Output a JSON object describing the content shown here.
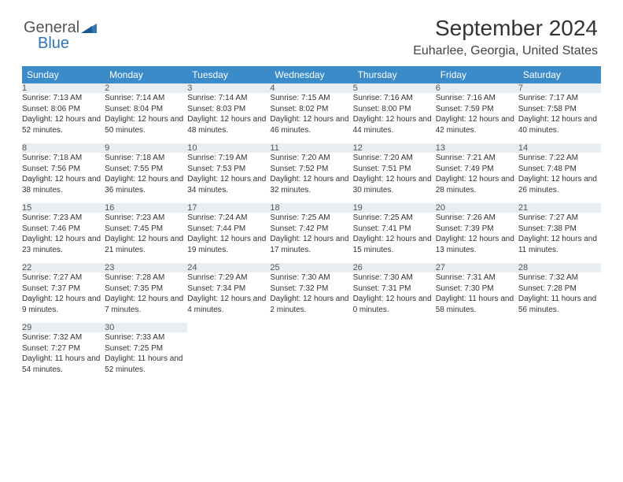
{
  "logo": {
    "part1": "General",
    "part2": "Blue"
  },
  "header": {
    "title": "September 2024",
    "location": "Euharlee, Georgia, United States"
  },
  "colors": {
    "header_bg": "#3b8bc9",
    "daynum_bg": "#e8edf2",
    "daynum_border": "#4a6ea0",
    "logo_blue": "#2f77b6"
  },
  "weekdays": [
    "Sunday",
    "Monday",
    "Tuesday",
    "Wednesday",
    "Thursday",
    "Friday",
    "Saturday"
  ],
  "weeks": [
    [
      {
        "num": "1",
        "sunrise": "Sunrise: 7:13 AM",
        "sunset": "Sunset: 8:06 PM",
        "daylight": "Daylight: 12 hours and 52 minutes."
      },
      {
        "num": "2",
        "sunrise": "Sunrise: 7:14 AM",
        "sunset": "Sunset: 8:04 PM",
        "daylight": "Daylight: 12 hours and 50 minutes."
      },
      {
        "num": "3",
        "sunrise": "Sunrise: 7:14 AM",
        "sunset": "Sunset: 8:03 PM",
        "daylight": "Daylight: 12 hours and 48 minutes."
      },
      {
        "num": "4",
        "sunrise": "Sunrise: 7:15 AM",
        "sunset": "Sunset: 8:02 PM",
        "daylight": "Daylight: 12 hours and 46 minutes."
      },
      {
        "num": "5",
        "sunrise": "Sunrise: 7:16 AM",
        "sunset": "Sunset: 8:00 PM",
        "daylight": "Daylight: 12 hours and 44 minutes."
      },
      {
        "num": "6",
        "sunrise": "Sunrise: 7:16 AM",
        "sunset": "Sunset: 7:59 PM",
        "daylight": "Daylight: 12 hours and 42 minutes."
      },
      {
        "num": "7",
        "sunrise": "Sunrise: 7:17 AM",
        "sunset": "Sunset: 7:58 PM",
        "daylight": "Daylight: 12 hours and 40 minutes."
      }
    ],
    [
      {
        "num": "8",
        "sunrise": "Sunrise: 7:18 AM",
        "sunset": "Sunset: 7:56 PM",
        "daylight": "Daylight: 12 hours and 38 minutes."
      },
      {
        "num": "9",
        "sunrise": "Sunrise: 7:18 AM",
        "sunset": "Sunset: 7:55 PM",
        "daylight": "Daylight: 12 hours and 36 minutes."
      },
      {
        "num": "10",
        "sunrise": "Sunrise: 7:19 AM",
        "sunset": "Sunset: 7:53 PM",
        "daylight": "Daylight: 12 hours and 34 minutes."
      },
      {
        "num": "11",
        "sunrise": "Sunrise: 7:20 AM",
        "sunset": "Sunset: 7:52 PM",
        "daylight": "Daylight: 12 hours and 32 minutes."
      },
      {
        "num": "12",
        "sunrise": "Sunrise: 7:20 AM",
        "sunset": "Sunset: 7:51 PM",
        "daylight": "Daylight: 12 hours and 30 minutes."
      },
      {
        "num": "13",
        "sunrise": "Sunrise: 7:21 AM",
        "sunset": "Sunset: 7:49 PM",
        "daylight": "Daylight: 12 hours and 28 minutes."
      },
      {
        "num": "14",
        "sunrise": "Sunrise: 7:22 AM",
        "sunset": "Sunset: 7:48 PM",
        "daylight": "Daylight: 12 hours and 26 minutes."
      }
    ],
    [
      {
        "num": "15",
        "sunrise": "Sunrise: 7:23 AM",
        "sunset": "Sunset: 7:46 PM",
        "daylight": "Daylight: 12 hours and 23 minutes."
      },
      {
        "num": "16",
        "sunrise": "Sunrise: 7:23 AM",
        "sunset": "Sunset: 7:45 PM",
        "daylight": "Daylight: 12 hours and 21 minutes."
      },
      {
        "num": "17",
        "sunrise": "Sunrise: 7:24 AM",
        "sunset": "Sunset: 7:44 PM",
        "daylight": "Daylight: 12 hours and 19 minutes."
      },
      {
        "num": "18",
        "sunrise": "Sunrise: 7:25 AM",
        "sunset": "Sunset: 7:42 PM",
        "daylight": "Daylight: 12 hours and 17 minutes."
      },
      {
        "num": "19",
        "sunrise": "Sunrise: 7:25 AM",
        "sunset": "Sunset: 7:41 PM",
        "daylight": "Daylight: 12 hours and 15 minutes."
      },
      {
        "num": "20",
        "sunrise": "Sunrise: 7:26 AM",
        "sunset": "Sunset: 7:39 PM",
        "daylight": "Daylight: 12 hours and 13 minutes."
      },
      {
        "num": "21",
        "sunrise": "Sunrise: 7:27 AM",
        "sunset": "Sunset: 7:38 PM",
        "daylight": "Daylight: 12 hours and 11 minutes."
      }
    ],
    [
      {
        "num": "22",
        "sunrise": "Sunrise: 7:27 AM",
        "sunset": "Sunset: 7:37 PM",
        "daylight": "Daylight: 12 hours and 9 minutes."
      },
      {
        "num": "23",
        "sunrise": "Sunrise: 7:28 AM",
        "sunset": "Sunset: 7:35 PM",
        "daylight": "Daylight: 12 hours and 7 minutes."
      },
      {
        "num": "24",
        "sunrise": "Sunrise: 7:29 AM",
        "sunset": "Sunset: 7:34 PM",
        "daylight": "Daylight: 12 hours and 4 minutes."
      },
      {
        "num": "25",
        "sunrise": "Sunrise: 7:30 AM",
        "sunset": "Sunset: 7:32 PM",
        "daylight": "Daylight: 12 hours and 2 minutes."
      },
      {
        "num": "26",
        "sunrise": "Sunrise: 7:30 AM",
        "sunset": "Sunset: 7:31 PM",
        "daylight": "Daylight: 12 hours and 0 minutes."
      },
      {
        "num": "27",
        "sunrise": "Sunrise: 7:31 AM",
        "sunset": "Sunset: 7:30 PM",
        "daylight": "Daylight: 11 hours and 58 minutes."
      },
      {
        "num": "28",
        "sunrise": "Sunrise: 7:32 AM",
        "sunset": "Sunset: 7:28 PM",
        "daylight": "Daylight: 11 hours and 56 minutes."
      }
    ],
    [
      {
        "num": "29",
        "sunrise": "Sunrise: 7:32 AM",
        "sunset": "Sunset: 7:27 PM",
        "daylight": "Daylight: 11 hours and 54 minutes."
      },
      {
        "num": "30",
        "sunrise": "Sunrise: 7:33 AM",
        "sunset": "Sunset: 7:25 PM",
        "daylight": "Daylight: 11 hours and 52 minutes."
      },
      null,
      null,
      null,
      null,
      null
    ]
  ]
}
